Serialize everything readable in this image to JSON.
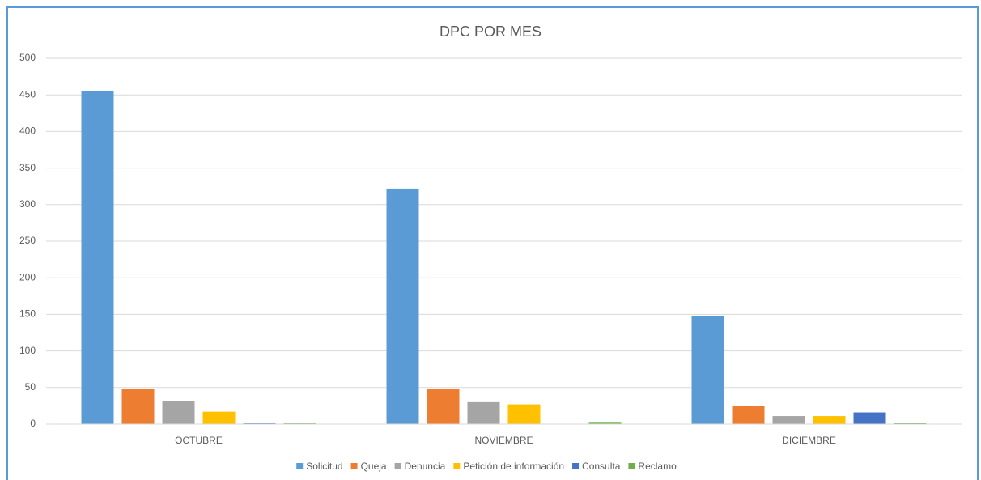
{
  "chart_data": {
    "type": "bar",
    "title": "DPC POR MES",
    "categories": [
      "OCTUBRE",
      "NOVIEMBRE",
      "DICIEMBRE"
    ],
    "series": [
      {
        "name": "Solicitud",
        "color": "#5b9bd5",
        "values": [
          455,
          322,
          148
        ]
      },
      {
        "name": "Queja",
        "color": "#ed7d31",
        "values": [
          48,
          48,
          25
        ]
      },
      {
        "name": "Denuncia",
        "color": "#a5a5a5",
        "values": [
          31,
          30,
          11
        ]
      },
      {
        "name": "Petición de información",
        "color": "#ffc000",
        "values": [
          17,
          27,
          11
        ]
      },
      {
        "name": "Consulta",
        "color": "#4472c4",
        "values": [
          1,
          0,
          16
        ]
      },
      {
        "name": "Reclamo",
        "color": "#70ad47",
        "values": [
          1,
          3,
          2
        ]
      }
    ],
    "ylim": [
      0,
      500
    ],
    "yticks": [
      0,
      50,
      100,
      150,
      200,
      250,
      300,
      350,
      400,
      450,
      500
    ],
    "grid": true,
    "legend": "bottom"
  }
}
